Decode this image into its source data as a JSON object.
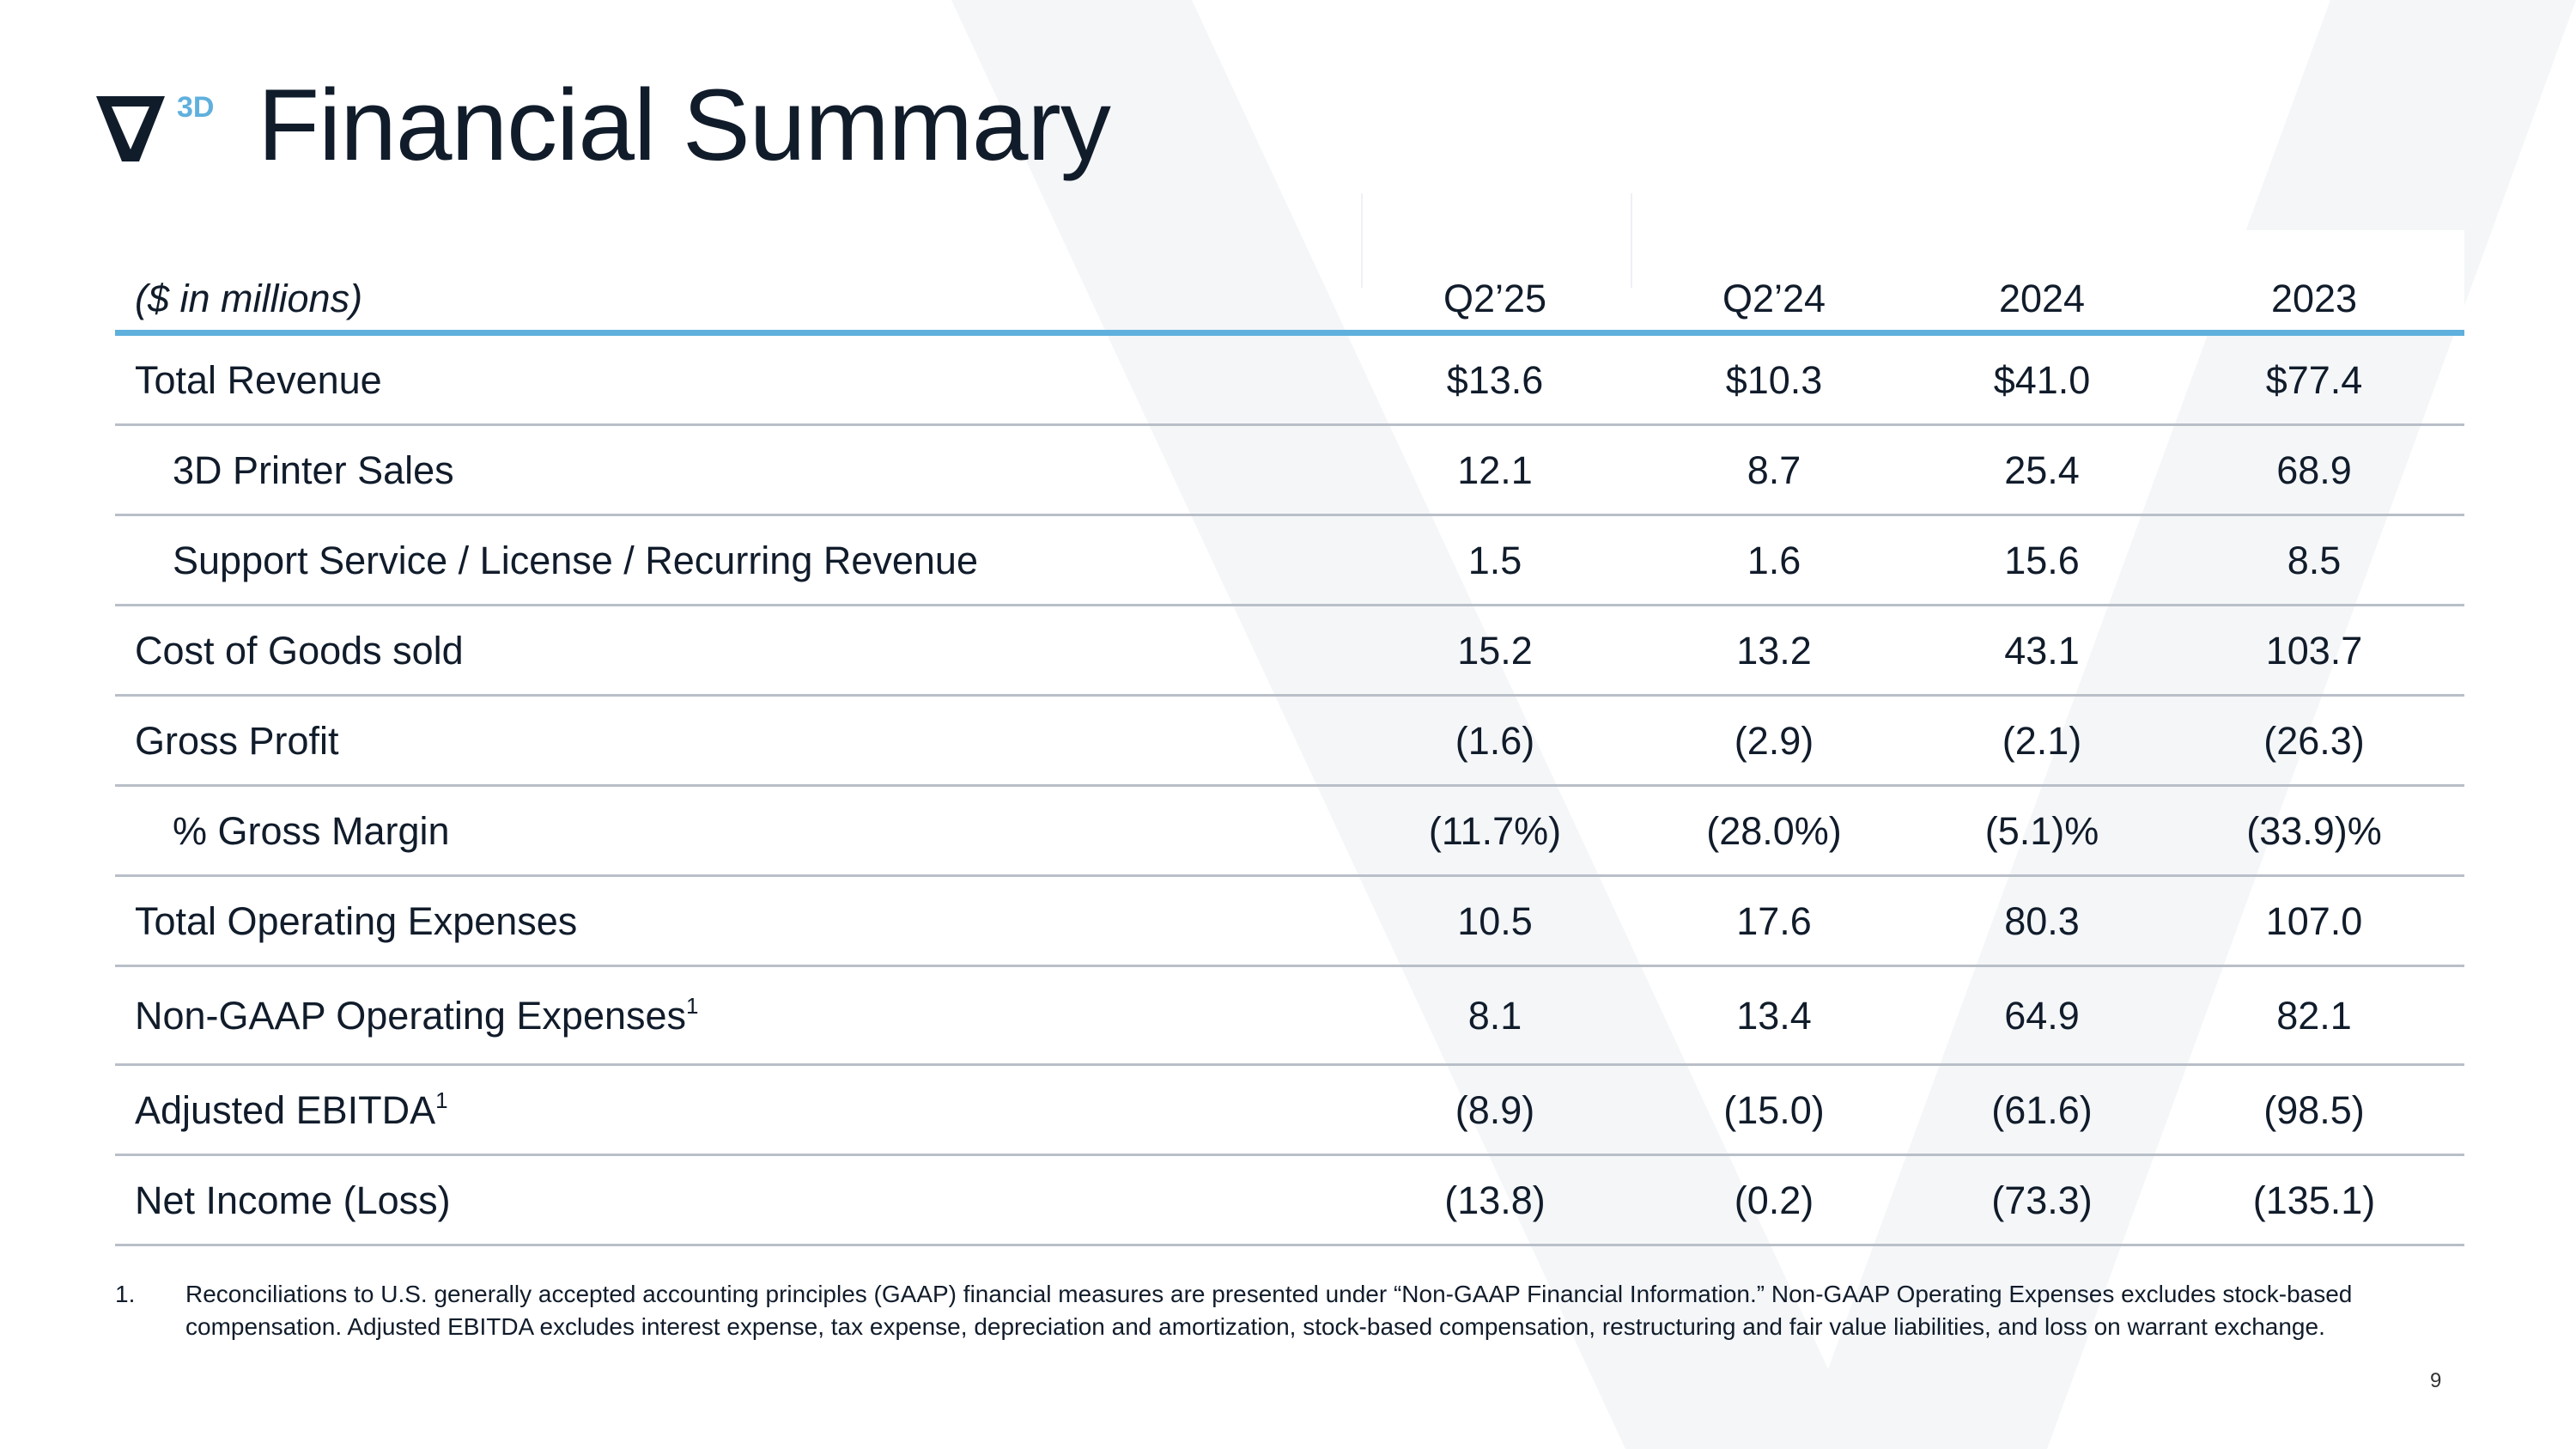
{
  "logo": {
    "mark": "V",
    "suffix": "3D",
    "accent_color": "#5fb0dd"
  },
  "title": "Financial Summary",
  "table": {
    "unit_label": "($ in millions)",
    "columns": [
      "Q2’25",
      "Q2’24",
      "2024",
      "2023"
    ],
    "rows": [
      {
        "label": "Total Revenue",
        "sup": "",
        "indent": false,
        "values": [
          "$13.6",
          "$10.3",
          "$41.0",
          "$77.4"
        ]
      },
      {
        "label": "3D Printer Sales",
        "sup": "",
        "indent": true,
        "values": [
          "12.1",
          "8.7",
          "25.4",
          "68.9"
        ]
      },
      {
        "label": "Support Service / License / Recurring Revenue",
        "sup": "",
        "indent": true,
        "values": [
          "1.5",
          "1.6",
          "15.6",
          "8.5"
        ]
      },
      {
        "label": "Cost of Goods sold",
        "sup": "",
        "indent": false,
        "values": [
          "15.2",
          "13.2",
          "43.1",
          "103.7"
        ]
      },
      {
        "label": "Gross Profit",
        "sup": "",
        "indent": false,
        "values": [
          "(1.6)",
          "(2.9)",
          "(2.1)",
          "(26.3)"
        ]
      },
      {
        "label": "% Gross Margin",
        "sup": "",
        "indent": true,
        "values": [
          "(11.7%)",
          "(28.0%)",
          "(5.1)%",
          "(33.9)%"
        ]
      },
      {
        "label": "Total Operating Expenses",
        "sup": "",
        "indent": false,
        "values": [
          "10.5",
          "17.6",
          "80.3",
          "107.0"
        ]
      },
      {
        "label": "Non-GAAP Operating Expenses",
        "sup": "1",
        "indent": false,
        "values": [
          "8.1",
          "13.4",
          "64.9",
          "82.1"
        ]
      },
      {
        "label": "Adjusted EBITDA",
        "sup": "1",
        "indent": false,
        "values": [
          "(8.9)",
          "(15.0)",
          "(61.6)",
          "(98.5)"
        ]
      },
      {
        "label": "Net Income (Loss)",
        "sup": "",
        "indent": false,
        "values": [
          "(13.8)",
          "(0.2)",
          "(73.3)",
          "(135.1)"
        ]
      }
    ]
  },
  "footnote": {
    "number": "1.",
    "text": "Reconciliations to U.S. generally accepted accounting principles (GAAP) financial measures are presented under “Non-GAAP Financial Information.”  Non-GAAP Operating Expenses excludes stock-based compensation. Adjusted EBITDA excludes interest expense, tax expense, depreciation and amortization, stock-based compensation, restructuring and fair value liabilities, and loss on warrant exchange."
  },
  "page_number": "9"
}
